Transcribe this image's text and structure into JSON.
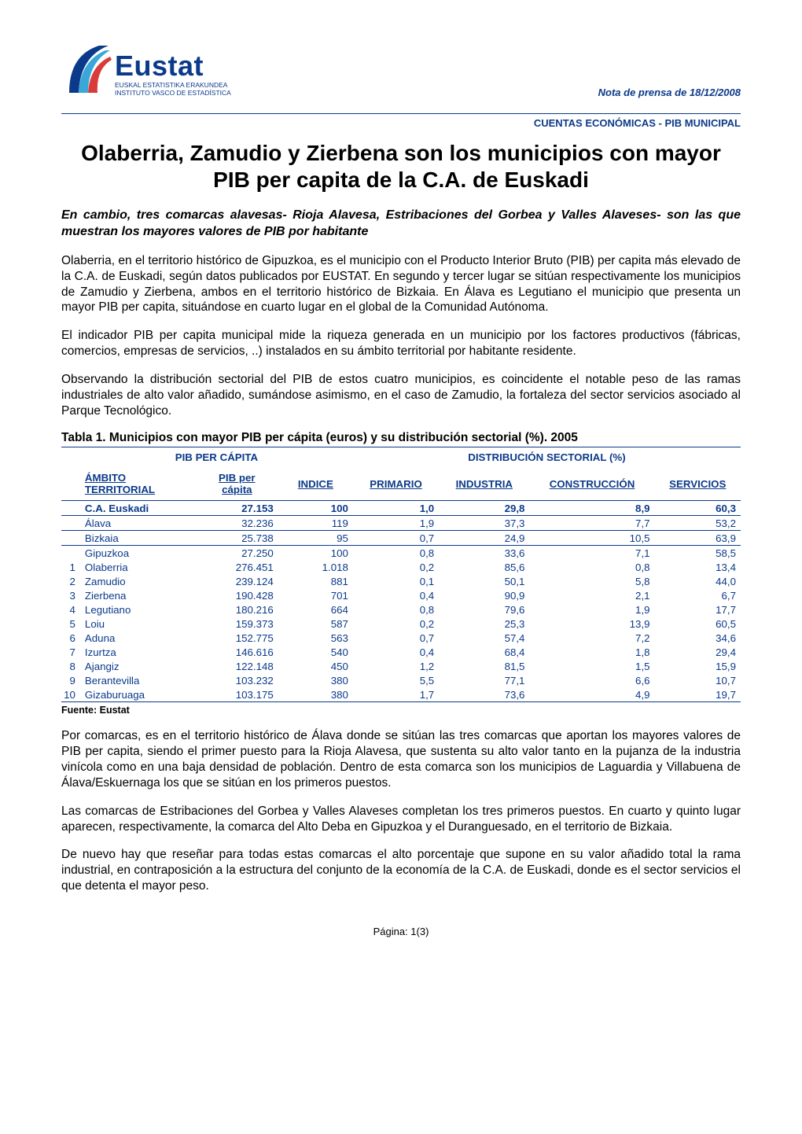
{
  "header": {
    "logo_word": "Eustat",
    "logo_sub1": "EUSKAL ESTATISTIKA ERAKUNDEA",
    "logo_sub2": "INSTITUTO VASCO DE ESTADÍSTICA",
    "press_note": "Nota de prensa de 18/12/2008",
    "section_label": "CUENTAS ECONÓMICAS - PIB MUNICIPAL",
    "logo_colors": {
      "blue": "#0b3a8a",
      "cyan": "#3aa7d9",
      "red": "#d93a3a"
    }
  },
  "title": "Olaberria, Zamudio y Zierbena son los municipios con mayor PIB per capita de la C.A. de Euskadi",
  "subhead": "En cambio, tres comarcas alavesas- Rioja Alavesa, Estribaciones del Gorbea y Valles Alaveses- son las que muestran los mayores valores de PIB por habitante",
  "paragraphs_top": [
    "Olaberria, en el territorio histórico de Gipuzkoa, es el municipio con el Producto Interior Bruto (PIB) per capita más elevado de la C.A. de Euskadi, según datos publicados por EUSTAT. En segundo y tercer lugar se sitúan respectivamente los municipios de Zamudio y Zierbena, ambos en el territorio histórico de Bizkaia. En Álava es Legutiano el municipio que presenta un mayor PIB per capita, situándose en cuarto lugar en el global de la Comunidad Autónoma.",
    "El indicador PIB per capita municipal mide la riqueza generada en un municipio por los factores productivos (fábricas, comercios, empresas de servicios, ..) instalados en su ámbito territorial por habitante residente.",
    "Observando la distribución sectorial del PIB de estos cuatro municipios, es coincidente el notable peso de las ramas industriales de alto valor añadido, sumándose asimismo, en el caso de Zamudio, la fortaleza del sector servicios asociado al Parque Tecnológico."
  ],
  "table": {
    "type": "table",
    "title": "Tabla 1. Municipios con mayor PIB per cápita (euros) y su distribución sectorial (%). 2005",
    "group_headers": [
      "PIB PER CÁPITA",
      "DISTRIBUCIÓN SECTORIAL (%)"
    ],
    "columns": {
      "ambito_line1": "ÁMBITO",
      "ambito_line2": "TERRITORIAL",
      "pib_line1": "PIB per",
      "pib_line2": "cápita",
      "indice": "INDICE",
      "primario": "PRIMARIO",
      "industria": "INDUSTRIA",
      "construccion": "CONSTRUCCIÓN",
      "servicios": "SERVICIOS"
    },
    "territory_rows": [
      {
        "rank": "",
        "name": "C.A. Euskadi",
        "pib": "27.153",
        "indice": "100",
        "primario": "1,0",
        "industria": "29,8",
        "construccion": "8,9",
        "servicios": "60,3",
        "bold": true
      },
      {
        "rank": "",
        "name": "Álava",
        "pib": "32.236",
        "indice": "119",
        "primario": "1,9",
        "industria": "37,3",
        "construccion": "7,7",
        "servicios": "53,2",
        "bold": false
      },
      {
        "rank": "",
        "name": "Bizkaia",
        "pib": "25.738",
        "indice": "95",
        "primario": "0,7",
        "industria": "24,9",
        "construccion": "10,5",
        "servicios": "63,9",
        "bold": false
      },
      {
        "rank": "",
        "name": "Gipuzkoa",
        "pib": "27.250",
        "indice": "100",
        "primario": "0,8",
        "industria": "33,6",
        "construccion": "7,1",
        "servicios": "58,5",
        "bold": false
      }
    ],
    "municipality_rows": [
      {
        "rank": "1",
        "name": "Olaberria",
        "pib": "276.451",
        "indice": "1.018",
        "primario": "0,2",
        "industria": "85,6",
        "construccion": "0,8",
        "servicios": "13,4"
      },
      {
        "rank": "2",
        "name": "Zamudio",
        "pib": "239.124",
        "indice": "881",
        "primario": "0,1",
        "industria": "50,1",
        "construccion": "5,8",
        "servicios": "44,0"
      },
      {
        "rank": "3",
        "name": "Zierbena",
        "pib": "190.428",
        "indice": "701",
        "primario": "0,4",
        "industria": "90,9",
        "construccion": "2,1",
        "servicios": "6,7"
      },
      {
        "rank": "4",
        "name": "Legutiano",
        "pib": "180.216",
        "indice": "664",
        "primario": "0,8",
        "industria": "79,6",
        "construccion": "1,9",
        "servicios": "17,7"
      },
      {
        "rank": "5",
        "name": "Loiu",
        "pib": "159.373",
        "indice": "587",
        "primario": "0,2",
        "industria": "25,3",
        "construccion": "13,9",
        "servicios": "60,5"
      },
      {
        "rank": "6",
        "name": "Aduna",
        "pib": "152.775",
        "indice": "563",
        "primario": "0,7",
        "industria": "57,4",
        "construccion": "7,2",
        "servicios": "34,6"
      },
      {
        "rank": "7",
        "name": "Izurtza",
        "pib": "146.616",
        "indice": "540",
        "primario": "0,4",
        "industria": "68,4",
        "construccion": "1,8",
        "servicios": "29,4"
      },
      {
        "rank": "8",
        "name": "Ajangiz",
        "pib": "122.148",
        "indice": "450",
        "primario": "1,2",
        "industria": "81,5",
        "construccion": "1,5",
        "servicios": "15,9"
      },
      {
        "rank": "9",
        "name": "Berantevilla",
        "pib": "103.232",
        "indice": "380",
        "primario": "5,5",
        "industria": "77,1",
        "construccion": "6,6",
        "servicios": "10,7"
      },
      {
        "rank": "10",
        "name": "Gizaburuaga",
        "pib": "103.175",
        "indice": "380",
        "primario": "1,7",
        "industria": "73,6",
        "construccion": "4,9",
        "servicios": "19,7"
      }
    ],
    "source": "Fuente: Eustat",
    "styling": {
      "text_color": "#0b3a8a",
      "border_color": "#0b3a8a",
      "font_size_pt": 10,
      "header_font_weight": "bold",
      "alignment": {
        "ambito": "left",
        "pib": "right",
        "indice": "right",
        "primario": "right",
        "industria": "right",
        "construccion": "right",
        "servicios": "right"
      }
    }
  },
  "paragraphs_bottom": [
    "Por comarcas, es en el territorio histórico de Álava donde se sitúan las tres comarcas que aportan los mayores valores de PIB per capita, siendo el primer puesto para la Rioja Alavesa, que sustenta su alto valor tanto en la pujanza de la industria vinícola como en una baja densidad de población. Dentro de esta comarca son los municipios de Laguardia y Villabuena de Álava/Eskuernaga los que se sitúan en los primeros puestos.",
    "Las comarcas de Estribaciones del Gorbea y Valles Alaveses completan los tres primeros puestos. En cuarto y quinto lugar aparecen, respectivamente, la comarca del Alto Deba en Gipuzkoa y el Duranguesado, en el territorio de Bizkaia.",
    "De nuevo hay que reseñar para todas estas comarcas el alto porcentaje que supone en su valor añadido total la rama industrial, en contraposición a la estructura del conjunto de la economía de la C.A. de Euskadi, donde es el sector servicios el que detenta el mayor peso."
  ],
  "footer": "Página: 1(3)"
}
